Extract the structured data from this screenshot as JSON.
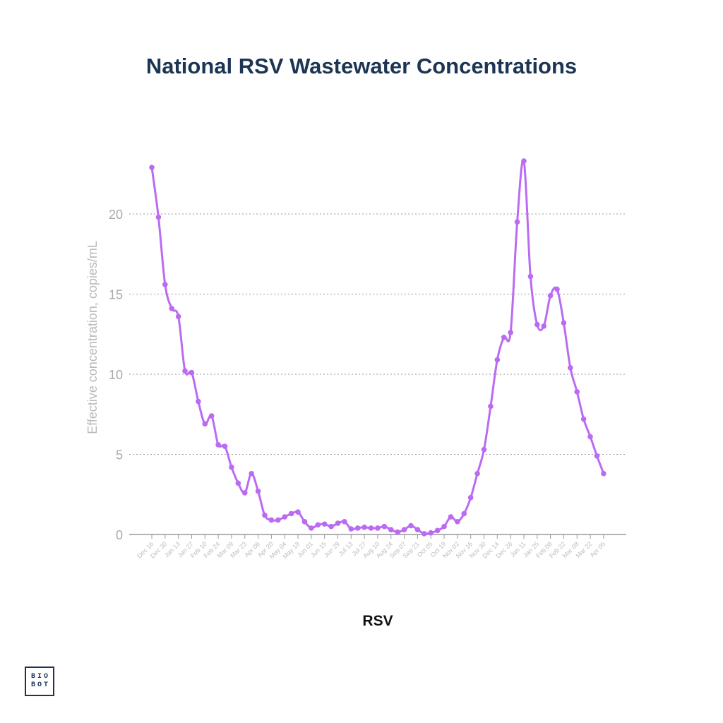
{
  "chart_data": {
    "type": "line",
    "title": "National RSV Wastewater Concentrations",
    "ylabel": "Effective concentration, copies/mL",
    "series_label": "RSV",
    "color": "#bb6bf2",
    "ylim": [
      0,
      23.5
    ],
    "yticks": [
      "0",
      "5",
      "10",
      "15",
      "20"
    ],
    "xtick_labels": [
      "Dec 16",
      "Dec 30",
      "Jan 13",
      "Jan 27",
      "Feb 10",
      "Feb 24",
      "Mar 09",
      "Mar 23",
      "Apr 06",
      "Apr 20",
      "May 04",
      "May 18",
      "Jun 01",
      "Jun 15",
      "Jun 29",
      "Jul 13",
      "Jul 27",
      "Aug 10",
      "Aug 24",
      "Sep 07",
      "Sep 21",
      "Oct 05",
      "Oct 19",
      "Nov 02",
      "Nov 16",
      "Nov 30",
      "Dec 14",
      "Dec 28",
      "Jan 11",
      "Jan 25",
      "Feb 08",
      "Feb 22",
      "Mar 08",
      "Mar 22",
      "Apr 05"
    ],
    "points_per_tick": 2,
    "values": [
      22.9,
      19.8,
      15.6,
      14.1,
      13.6,
      10.2,
      10.1,
      8.3,
      6.9,
      7.4,
      5.6,
      5.5,
      4.2,
      3.2,
      2.6,
      3.8,
      2.7,
      1.2,
      0.9,
      0.9,
      1.1,
      1.3,
      1.4,
      0.8,
      0.4,
      0.6,
      0.65,
      0.5,
      0.7,
      0.8,
      0.35,
      0.4,
      0.45,
      0.4,
      0.4,
      0.5,
      0.3,
      0.15,
      0.3,
      0.55,
      0.3,
      0.05,
      0.1,
      0.25,
      0.5,
      1.1,
      0.8,
      1.3,
      2.3,
      3.8,
      5.3,
      8.0,
      10.9,
      12.3,
      12.6,
      19.5,
      23.3,
      16.1,
      13.1,
      13.0,
      14.9,
      15.3,
      13.2,
      10.4,
      8.9,
      7.2,
      6.1,
      4.9,
      3.8
    ]
  },
  "logo": {
    "line1": "BIO",
    "line2": "BOT"
  }
}
